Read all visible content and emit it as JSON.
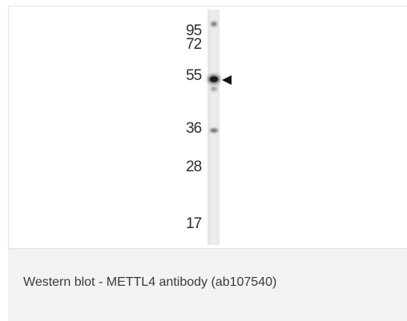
{
  "blot": {
    "markers": [
      "95",
      "72",
      "55",
      "36",
      "28",
      "17"
    ]
  },
  "caption": {
    "text": "Western blot - METTL4 antibody (ab107540)"
  },
  "colors": {
    "caption_background": "#f3f3f3",
    "caption_text": "#3a3a3a",
    "band": "#2a2a2a",
    "lane": "#ebebeb"
  },
  "icons": [
    "band-pointer-arrow-icon"
  ]
}
